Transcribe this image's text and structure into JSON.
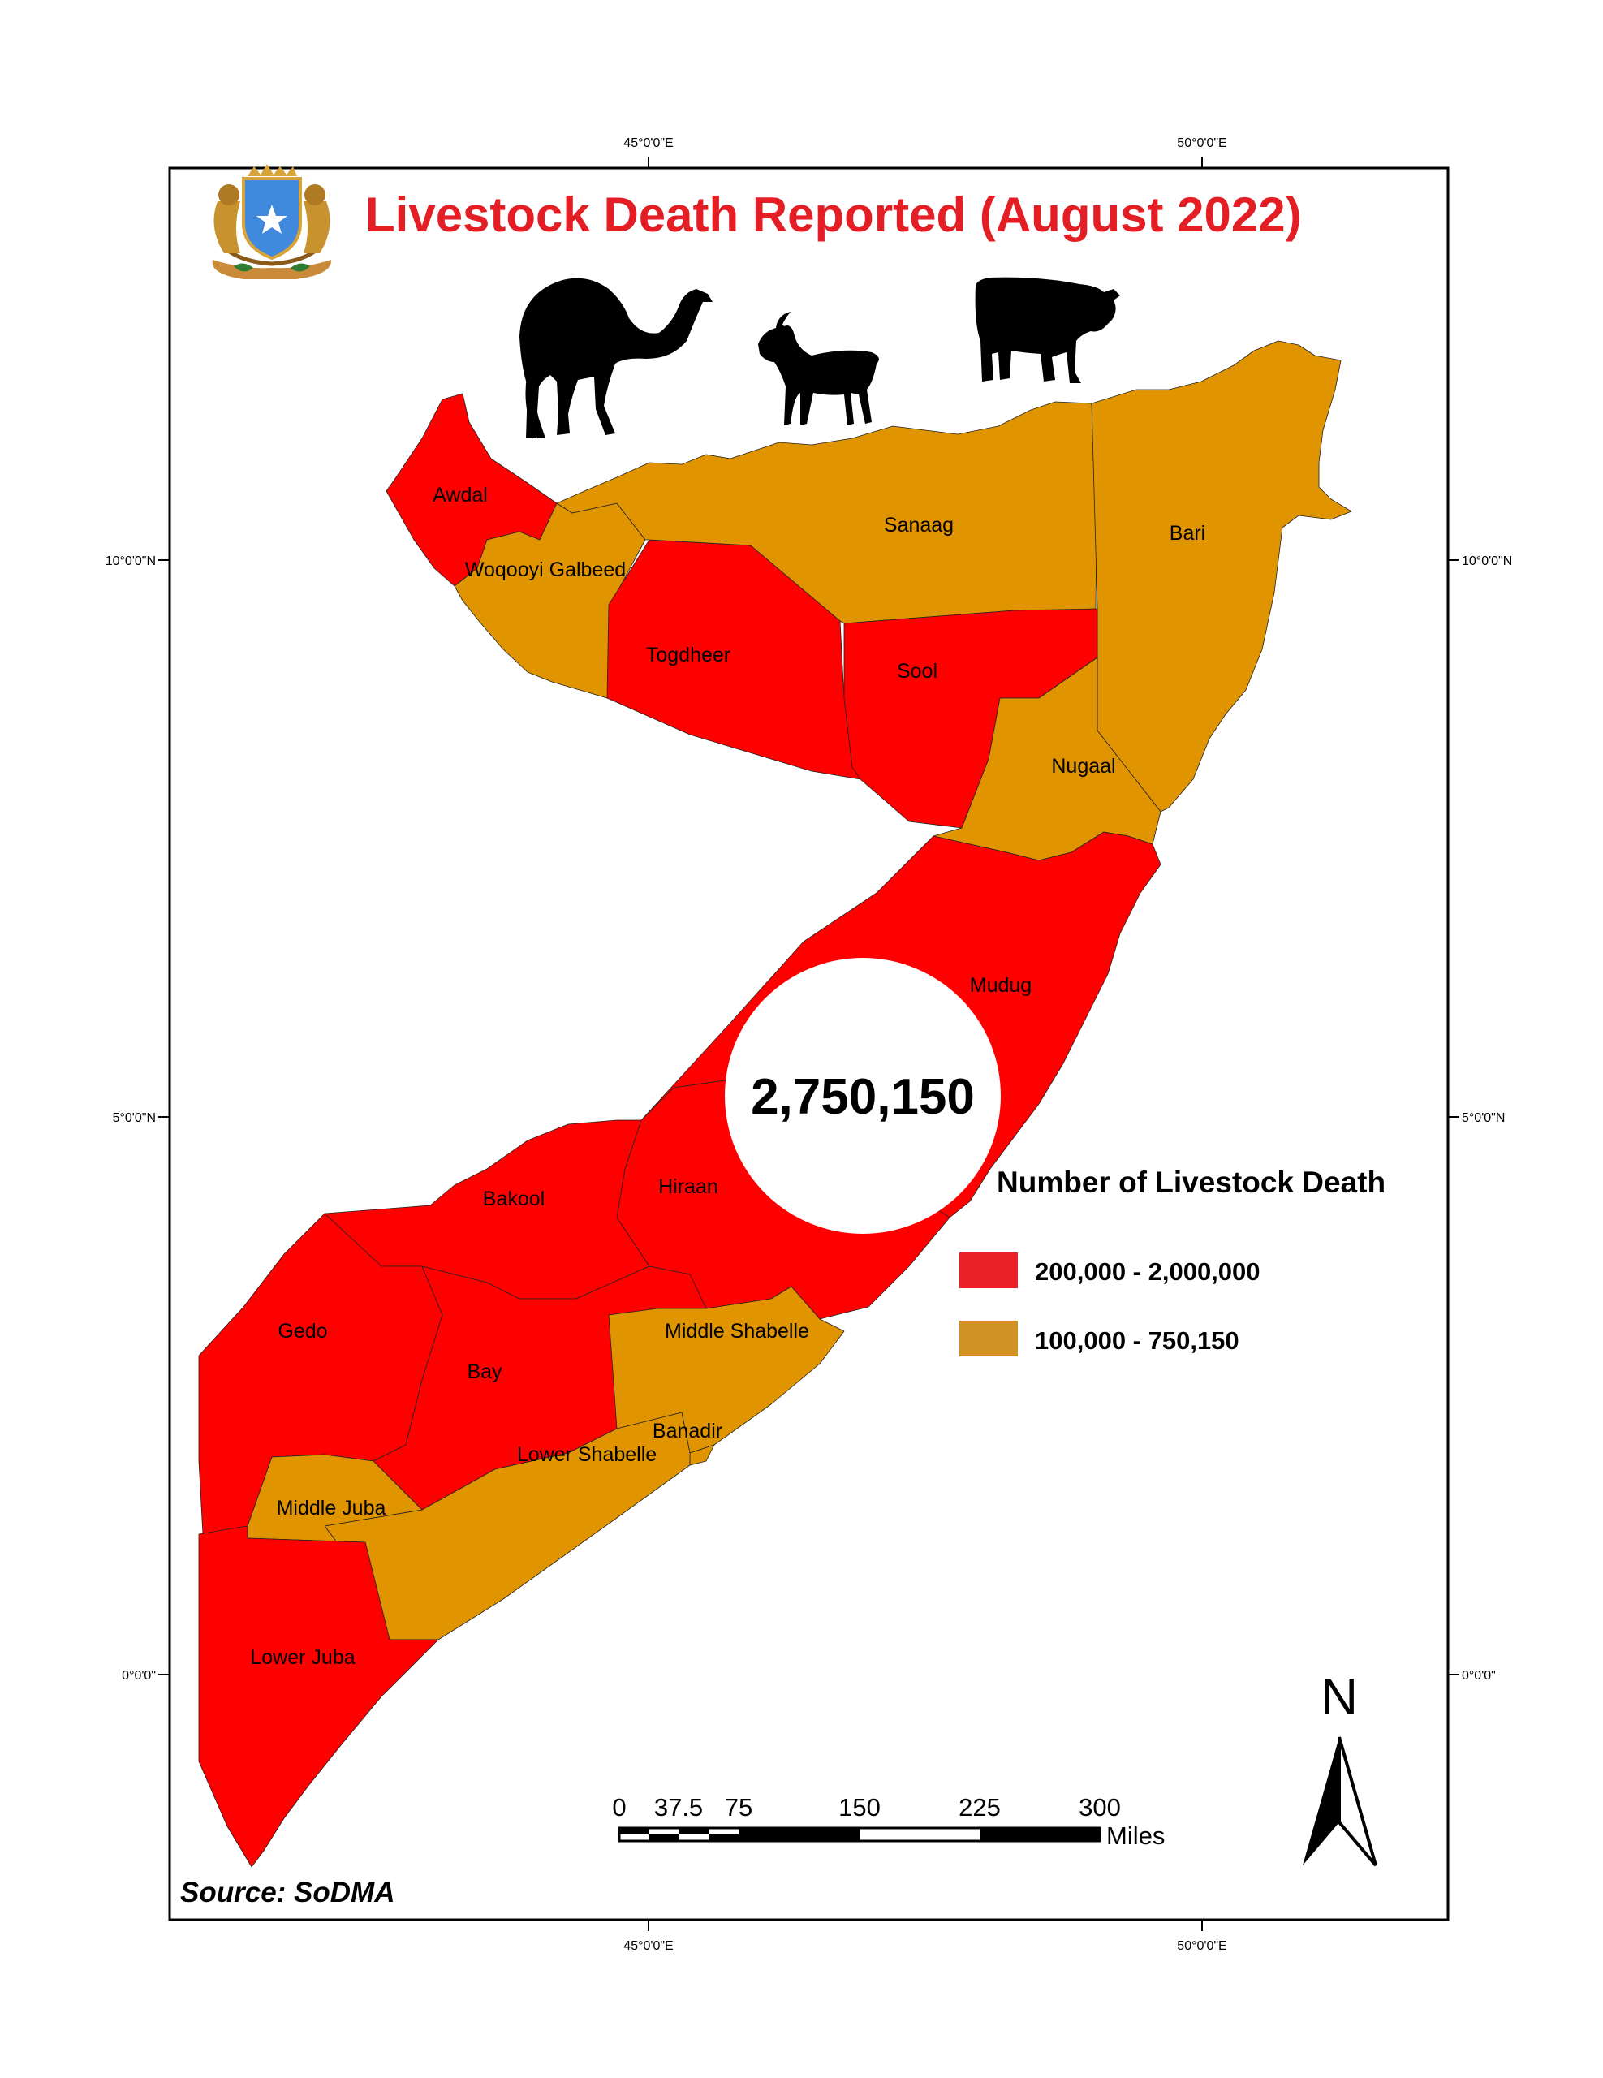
{
  "map": {
    "title": "Livestock Death Reported (August 2022)",
    "title_color": "#e41e25",
    "source": "Source: SoDMA",
    "total": "2,750,150",
    "graticule": {
      "lon_top_left": "45°0'0\"E",
      "lon_top_right": "50°0'0\"E",
      "lon_bottom_left": "45°0'0\"E",
      "lon_bottom_right": "50°0'0\"E",
      "lat_10_left": "10°0'0\"N",
      "lat_10_right": "10°0'0\"N",
      "lat_5_left": "5°0'0\"N",
      "lat_5_right": "5°0'0\"N",
      "lat_0_left": "0°0'0\"",
      "lat_0_right": "0°0'0\""
    },
    "legend": {
      "title": "Number of Livestock Death",
      "items": [
        {
          "label": "200,000 - 2,000,000",
          "color": "#ff0000"
        },
        {
          "label": "100,000 - 750,150",
          "color": "#e09400"
        }
      ]
    },
    "colors": {
      "high": "#ff0000",
      "low": "#e09400"
    },
    "regions": [
      {
        "name": "Awdal",
        "class": "high"
      },
      {
        "name": "Woqooyi Galbeed",
        "class": "low"
      },
      {
        "name": "Togdheer",
        "class": "high"
      },
      {
        "name": "Sanaag",
        "class": "low"
      },
      {
        "name": "Sool",
        "class": "high"
      },
      {
        "name": "Bari",
        "class": "low"
      },
      {
        "name": "Nugaal",
        "class": "low"
      },
      {
        "name": "Mudug",
        "class": "high"
      },
      {
        "name": "Hiraan",
        "class": "high"
      },
      {
        "name": "Bakool",
        "class": "high"
      },
      {
        "name": "Gedo",
        "class": "high"
      },
      {
        "name": "Bay",
        "class": "high"
      },
      {
        "name": "Middle Shabelle",
        "class": "low"
      },
      {
        "name": "Banadir",
        "class": "low"
      },
      {
        "name": "Lower Shabelle",
        "class": "low"
      },
      {
        "name": "Middle Juba",
        "class": "low"
      },
      {
        "name": "Lower Juba",
        "class": "high"
      }
    ],
    "scale_bar": {
      "ticks": [
        "0",
        "37.5",
        "75",
        "150",
        "225",
        "300"
      ],
      "unit": "Miles"
    },
    "north_label": "N",
    "icons": [
      "coat-of-arms-icon",
      "camel-icon",
      "goat-icon",
      "cow-icon",
      "north-arrow-icon"
    ]
  }
}
